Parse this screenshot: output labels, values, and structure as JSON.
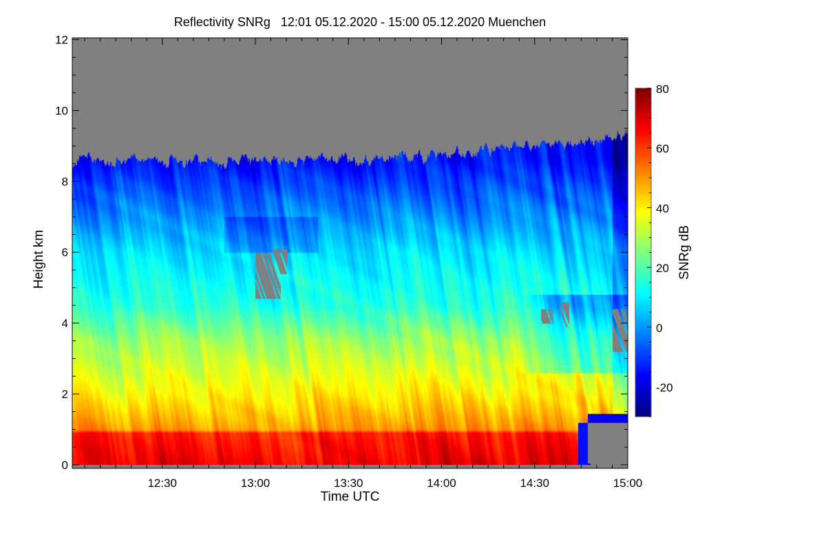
{
  "chart_data": {
    "type": "heatmap",
    "title": "Reflectivity SNRg   12:01 05.12.2020 - 15:00 05.12.2020 Muenchen",
    "xlabel": "Time UTC",
    "ylabel": "Height km",
    "colorbar_label": "SNRg dB",
    "x_range_minutes": [
      721,
      900
    ],
    "x_ticks": [
      {
        "label": "12:30",
        "value": 750
      },
      {
        "label": "13:00",
        "value": 780
      },
      {
        "label": "13:30",
        "value": 810
      },
      {
        "label": "14:00",
        "value": 840
      },
      {
        "label": "14:30",
        "value": 870
      },
      {
        "label": "15:00",
        "value": 900
      }
    ],
    "ylim": [
      -0.1,
      12.05
    ],
    "y_ticks": [
      0,
      2,
      4,
      6,
      8,
      10,
      12
    ],
    "colorbar_range": [
      -30,
      80
    ],
    "colorbar_ticks": [
      -20,
      0,
      20,
      40,
      60,
      80
    ],
    "colormap": "jet",
    "missing_color": "#808080",
    "profile": {
      "height_km": [
        0,
        0.9,
        1.0,
        2.0,
        3.5,
        4.5,
        6.0,
        7.5,
        8.6
      ],
      "snr_db": [
        68,
        63,
        50,
        40,
        28,
        15,
        8,
        -5,
        -15
      ]
    },
    "cloud_top_km": {
      "start": 8.6,
      "end": 9.3
    }
  }
}
